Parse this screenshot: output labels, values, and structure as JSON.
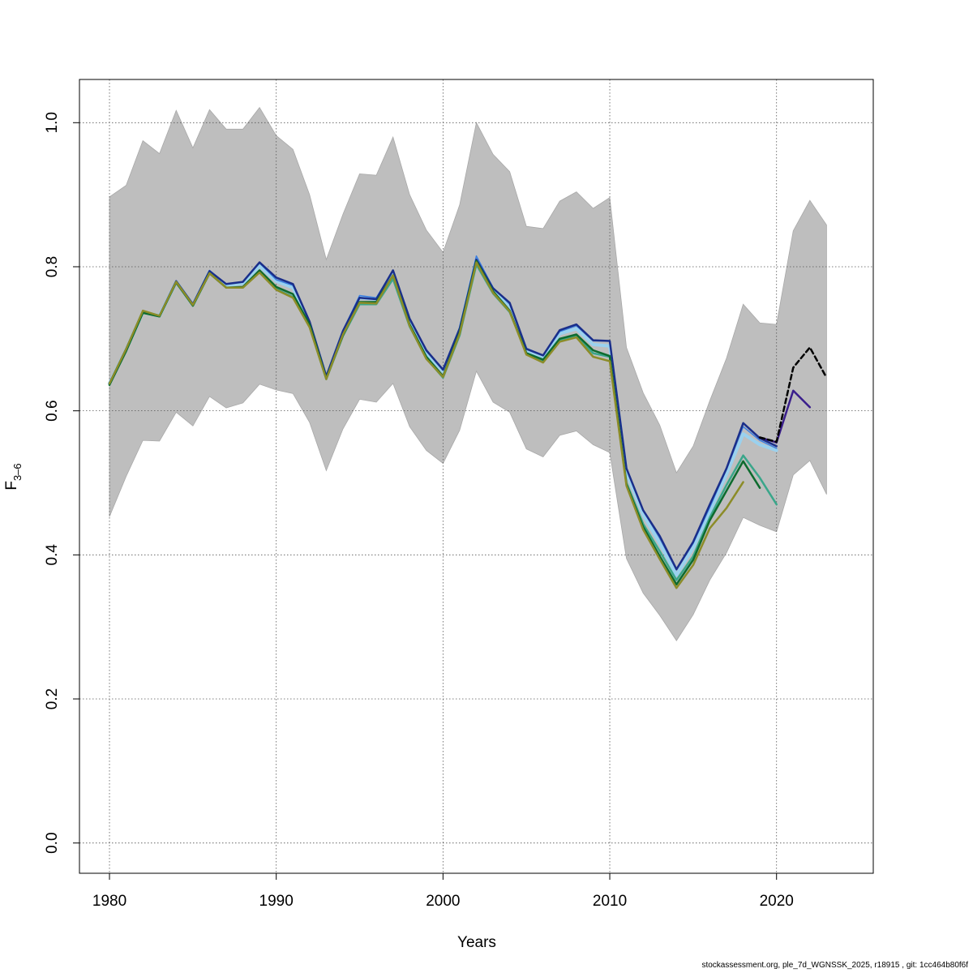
{
  "chart_data": {
    "type": "line",
    "title": "",
    "xlabel": "Years",
    "ylabel_main": "F",
    "ylabel_sub": "3–6",
    "xlim": [
      1978.2,
      2025.8
    ],
    "ylim": [
      -0.042,
      1.06
    ],
    "xticks": [
      1980,
      1990,
      2000,
      2010,
      2020
    ],
    "yticks": [
      0.0,
      0.2,
      0.4,
      0.6,
      0.8,
      1.0
    ],
    "ytick_labels": [
      "0.0",
      "0.2",
      "0.4",
      "0.6",
      "0.8",
      "1.0"
    ],
    "grid": true,
    "band_color": "#bebebe",
    "band": {
      "x": [
        1980,
        1981,
        1982,
        1983,
        1984,
        1985,
        1986,
        1987,
        1988,
        1989,
        1990,
        1991,
        1992,
        1993,
        1994,
        1995,
        1996,
        1997,
        1998,
        1999,
        2000,
        2001,
        2002,
        2003,
        2004,
        2005,
        2006,
        2007,
        2008,
        2009,
        2010,
        2011,
        2012,
        2013,
        2014,
        2015,
        2016,
        2017,
        2018,
        2019,
        2020,
        2021,
        2022,
        2023
      ],
      "upper": [
        0.897,
        0.913,
        0.975,
        0.957,
        1.017,
        0.965,
        1.018,
        0.991,
        0.991,
        1.021,
        0.982,
        0.963,
        0.9,
        0.81,
        0.873,
        0.929,
        0.927,
        0.98,
        0.9,
        0.851,
        0.82,
        0.886,
        1.0,
        0.956,
        0.932,
        0.856,
        0.853,
        0.891,
        0.904,
        0.881,
        0.896,
        0.688,
        0.625,
        0.58,
        0.514,
        0.551,
        0.614,
        0.673,
        0.748,
        0.722,
        0.72,
        0.85,
        0.892,
        0.858
      ],
      "lower": [
        0.453,
        0.509,
        0.559,
        0.558,
        0.598,
        0.579,
        0.62,
        0.604,
        0.611,
        0.637,
        0.629,
        0.624,
        0.584,
        0.517,
        0.575,
        0.616,
        0.612,
        0.638,
        0.578,
        0.545,
        0.527,
        0.573,
        0.655,
        0.612,
        0.598,
        0.547,
        0.536,
        0.566,
        0.572,
        0.553,
        0.542,
        0.395,
        0.347,
        0.316,
        0.281,
        0.317,
        0.365,
        0.403,
        0.452,
        0.441,
        0.432,
        0.511,
        0.531,
        0.484
      ]
    },
    "series": [
      {
        "color": "#9ad1ee",
        "width": 4,
        "start": 1980,
        "values": [
          0.638,
          0.685,
          0.737,
          0.732,
          0.779,
          0.747,
          0.793,
          0.774,
          0.777,
          0.801,
          0.78,
          0.771,
          0.72,
          0.646,
          0.709,
          0.757,
          0.755,
          0.792,
          0.725,
          0.68,
          0.655,
          0.712,
          0.81,
          0.769,
          0.746,
          0.684,
          0.674,
          0.707,
          0.714,
          0.692,
          0.69,
          0.515,
          0.456,
          0.416,
          0.372,
          0.41,
          0.46,
          0.512,
          0.568,
          0.553,
          0.545
        ]
      },
      {
        "color": "#3a7ee0",
        "width": 1.5,
        "start": 1980,
        "values": [
          0.638,
          0.686,
          0.738,
          0.732,
          0.78,
          0.748,
          0.795,
          0.776,
          0.779,
          0.805,
          0.782,
          0.774,
          0.724,
          0.648,
          0.711,
          0.76,
          0.757,
          0.795,
          0.727,
          0.683,
          0.658,
          0.716,
          0.815,
          0.771,
          0.748,
          0.687,
          0.677,
          0.71,
          0.718,
          0.697,
          0.697,
          0.521,
          0.462,
          0.423,
          0.379,
          0.416,
          0.466,
          0.519,
          0.578,
          0.559,
          0.548
        ]
      },
      {
        "color": "#1a2e8a",
        "width": 2.5,
        "start": 1980,
        "values": [
          0.638,
          0.686,
          0.738,
          0.732,
          0.78,
          0.748,
          0.794,
          0.776,
          0.779,
          0.806,
          0.785,
          0.776,
          0.724,
          0.648,
          0.711,
          0.757,
          0.755,
          0.795,
          0.728,
          0.684,
          0.657,
          0.714,
          0.81,
          0.77,
          0.75,
          0.686,
          0.677,
          0.712,
          0.72,
          0.698,
          0.697,
          0.52,
          0.462,
          0.426,
          0.38,
          0.418,
          0.47,
          0.52,
          0.583,
          0.562,
          0.551
        ]
      },
      {
        "color": "#3a1e8c",
        "width": 2.5,
        "start": 2019,
        "values": [
          0.563,
          0.556,
          0.628,
          0.605
        ]
      },
      {
        "color": "#3aa68a",
        "width": 2.5,
        "start": 1980,
        "values": [
          0.638,
          0.684,
          0.736,
          0.731,
          0.779,
          0.746,
          0.791,
          0.771,
          0.771,
          0.793,
          0.769,
          0.758,
          0.717,
          0.644,
          0.704,
          0.748,
          0.748,
          0.783,
          0.717,
          0.673,
          0.646,
          0.705,
          0.803,
          0.763,
          0.737,
          0.68,
          0.669,
          0.698,
          0.704,
          0.68,
          0.675,
          0.5,
          0.443,
          0.405,
          0.365,
          0.398,
          0.452,
          0.497,
          0.538,
          0.507,
          0.47
        ]
      },
      {
        "color": "#0d6b2e",
        "width": 2.5,
        "start": 1980,
        "values": [
          0.636,
          0.683,
          0.736,
          0.731,
          0.778,
          0.746,
          0.791,
          0.771,
          0.772,
          0.795,
          0.772,
          0.762,
          0.72,
          0.645,
          0.705,
          0.751,
          0.751,
          0.788,
          0.72,
          0.675,
          0.648,
          0.709,
          0.808,
          0.766,
          0.739,
          0.68,
          0.671,
          0.7,
          0.706,
          0.684,
          0.676,
          0.498,
          0.439,
          0.398,
          0.359,
          0.393,
          0.448,
          0.489,
          0.53,
          0.493
        ]
      },
      {
        "color": "#8c8c28",
        "width": 2.5,
        "start": 1980,
        "values": [
          0.638,
          0.686,
          0.739,
          0.732,
          0.779,
          0.747,
          0.791,
          0.771,
          0.771,
          0.792,
          0.768,
          0.757,
          0.716,
          0.644,
          0.706,
          0.75,
          0.749,
          0.788,
          0.718,
          0.672,
          0.647,
          0.707,
          0.806,
          0.764,
          0.738,
          0.678,
          0.667,
          0.696,
          0.702,
          0.675,
          0.669,
          0.496,
          0.435,
          0.394,
          0.354,
          0.386,
          0.437,
          0.465,
          0.501
        ]
      },
      {
        "color": "#000000",
        "width": 2.5,
        "dash": "6,4",
        "start": 2019,
        "values": [
          0.563,
          0.557,
          0.66,
          0.688,
          0.646
        ]
      }
    ]
  },
  "footer": "stockassessment.org, ple_7d_WGNSSK_2025, r18915 , git: 1cc464b80f6f"
}
